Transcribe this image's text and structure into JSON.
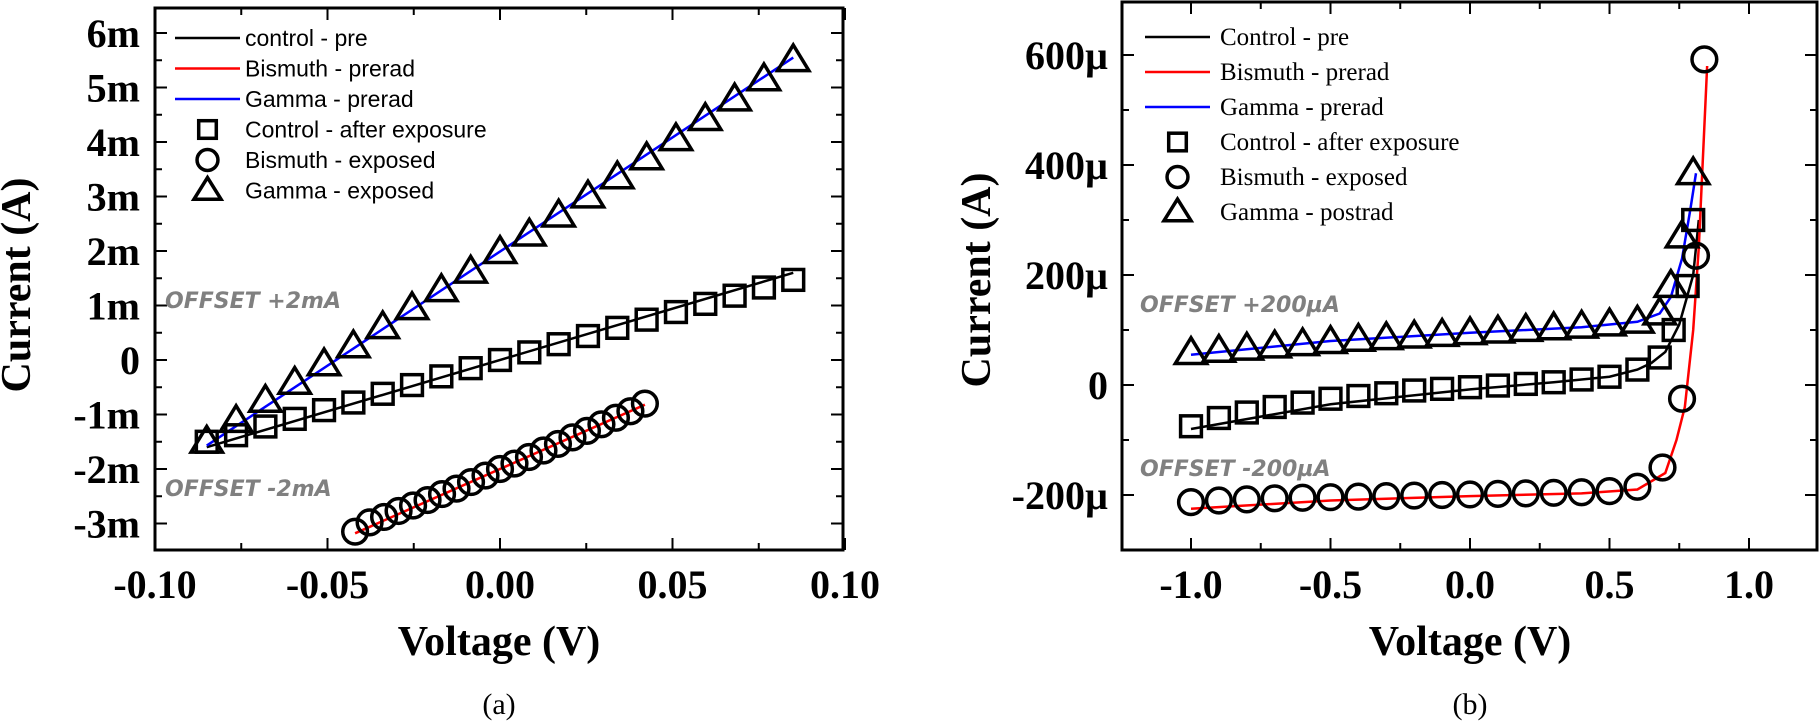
{
  "chart_data": [
    {
      "id": "a",
      "type": "scatter",
      "panel_label": "(a)",
      "title": "",
      "xlabel": "Voltage (V)",
      "ylabel": "Current (A)",
      "xlim": [
        -0.1,
        0.1
      ],
      "ylim": [
        -3.5,
        6.5
      ],
      "y_units": "mA",
      "x_ticks": [
        -0.1,
        -0.05,
        0.0,
        0.05,
        0.1
      ],
      "x_tick_labels": [
        "-0.10",
        "-0.05",
        "0.00",
        "0.05",
        "0.10"
      ],
      "y_ticks": [
        -3,
        -2,
        -1,
        0,
        1,
        2,
        3,
        4,
        5,
        6
      ],
      "y_tick_labels": [
        "-3m",
        "-2m",
        "-1m",
        "0",
        "1m",
        "2m",
        "3m",
        "4m",
        "5m",
        "6m"
      ],
      "grid": false,
      "legend_position": "top-left",
      "legend": [
        {
          "label": "control - pre",
          "kind": "line",
          "color": "#000000"
        },
        {
          "label": "Bismuth - prerad",
          "kind": "line",
          "color": "#ff0000"
        },
        {
          "label": "Gamma - prerad",
          "kind": "line",
          "color": "#0000ff"
        },
        {
          "label": "Control - after exposure",
          "kind": "square",
          "color": "#000000"
        },
        {
          "label": "Bismuth - exposed",
          "kind": "circle",
          "color": "#000000"
        },
        {
          "label": "Gamma - exposed",
          "kind": "triangle",
          "color": "#000000"
        }
      ],
      "annotations": [
        {
          "text": "OFFSET +2mA",
          "x": -0.1,
          "y": 1.0
        },
        {
          "text": "OFFSET -2mA",
          "x": -0.1,
          "y": -2.5
        }
      ],
      "series": [
        {
          "name": "control - pre",
          "kind": "line",
          "color": "#000000",
          "x": [
            -0.085,
            0.085
          ],
          "y": [
            -1.6,
            1.6
          ]
        },
        {
          "name": "Bismuth - prerad",
          "kind": "line",
          "color": "#ff0000",
          "x": [
            -0.042,
            0.042
          ],
          "y": [
            -3.18,
            -0.82
          ]
        },
        {
          "name": "Gamma - prerad",
          "kind": "line",
          "color": "#0000ff",
          "x": [
            -0.085,
            0.085
          ],
          "y": [
            -1.57,
            5.55
          ]
        },
        {
          "name": "Control - after exposure",
          "kind": "square",
          "x": [
            -0.085,
            -0.0765,
            -0.068,
            -0.0595,
            -0.051,
            -0.0425,
            -0.034,
            -0.0255,
            -0.017,
            -0.0085,
            0.0,
            0.0085,
            0.017,
            0.0255,
            0.034,
            0.0425,
            0.051,
            0.0595,
            0.068,
            0.0765,
            0.085
          ],
          "y": [
            -1.5,
            -1.38,
            -1.22,
            -1.08,
            -0.92,
            -0.78,
            -0.62,
            -0.46,
            -0.3,
            -0.15,
            0.0,
            0.14,
            0.29,
            0.44,
            0.59,
            0.74,
            0.88,
            1.03,
            1.18,
            1.33,
            1.47
          ]
        },
        {
          "name": "Bismuth - exposed",
          "kind": "circle",
          "x": [
            -0.042,
            -0.0378,
            -0.0336,
            -0.0294,
            -0.0252,
            -0.021,
            -0.0168,
            -0.0126,
            -0.0084,
            -0.0042,
            0.0,
            0.0042,
            0.0084,
            0.0126,
            0.0168,
            0.021,
            0.0252,
            0.0294,
            0.0336,
            0.0378,
            0.042
          ],
          "y": [
            -3.15,
            -2.98,
            -2.88,
            -2.77,
            -2.67,
            -2.57,
            -2.46,
            -2.36,
            -2.24,
            -2.12,
            -2.0,
            -1.9,
            -1.78,
            -1.66,
            -1.54,
            -1.42,
            -1.3,
            -1.18,
            -1.06,
            -0.94,
            -0.8
          ]
        },
        {
          "name": "Gamma - exposed",
          "kind": "triangle",
          "x": [
            -0.085,
            -0.0765,
            -0.068,
            -0.0595,
            -0.051,
            -0.0425,
            -0.034,
            -0.0255,
            -0.017,
            -0.0085,
            0.0,
            0.0085,
            0.017,
            0.0255,
            0.034,
            0.0425,
            0.051,
            0.0595,
            0.068,
            0.0765,
            0.085
          ],
          "y": [
            -1.5,
            -1.12,
            -0.75,
            -0.42,
            -0.08,
            0.25,
            0.6,
            0.95,
            1.28,
            1.62,
            1.98,
            2.3,
            2.65,
            3.0,
            3.35,
            3.7,
            4.05,
            4.42,
            4.78,
            5.15,
            5.5
          ]
        }
      ]
    },
    {
      "id": "b",
      "type": "scatter",
      "panel_label": "(b)",
      "title": "",
      "xlabel": "Voltage (V)",
      "ylabel": "Current (A)",
      "xlim": [
        -1.25,
        1.25
      ],
      "ylim": [
        -300,
        700
      ],
      "y_units": "µA",
      "x_ticks": [
        -1.0,
        -0.5,
        0.0,
        0.5,
        1.0
      ],
      "x_tick_labels": [
        "-1.0",
        "-0.5",
        "0.0",
        "0.5",
        "1.0"
      ],
      "y_ticks": [
        -200,
        0,
        200,
        400,
        600
      ],
      "y_tick_labels": [
        "-200µ",
        "0",
        "200µ",
        "400µ",
        "600µ"
      ],
      "grid": false,
      "legend_position": "top-left",
      "legend": [
        {
          "label": "Control - pre",
          "kind": "line",
          "color": "#000000"
        },
        {
          "label": "Bismuth - prerad",
          "kind": "line",
          "color": "#ff0000"
        },
        {
          "label": "Gamma - prerad",
          "kind": "line",
          "color": "#0000ff"
        },
        {
          "label": "Control - after exposure",
          "kind": "square",
          "color": "#000000"
        },
        {
          "label": "Bismuth - exposed",
          "kind": "circle",
          "color": "#000000"
        },
        {
          "label": "Gamma - postrad",
          "kind": "triangle",
          "color": "#000000"
        }
      ],
      "annotations": [
        {
          "text": "OFFSET +200µA",
          "x": -1.15,
          "y": 140
        },
        {
          "text": "OFFSET -200µA",
          "x": -1.2,
          "y": -150
        }
      ],
      "series": [
        {
          "name": "Control - pre",
          "kind": "line",
          "color": "#000000",
          "x": [
            -1.0,
            -0.5,
            0.0,
            0.3,
            0.5,
            0.6,
            0.65,
            0.7,
            0.75,
            0.8,
            0.82
          ],
          "y": [
            -80,
            -35,
            -8,
            5,
            15,
            28,
            40,
            60,
            110,
            200,
            300
          ]
        },
        {
          "name": "Bismuth - prerad",
          "kind": "line",
          "color": "#ff0000",
          "x": [
            -1.0,
            -0.5,
            0.0,
            0.4,
            0.6,
            0.65,
            0.7,
            0.74,
            0.77,
            0.8,
            0.82,
            0.85
          ],
          "y": [
            -225,
            -210,
            -202,
            -197,
            -190,
            -175,
            -160,
            -100,
            -40,
            100,
            250,
            580
          ]
        },
        {
          "name": "Gamma - prerad",
          "kind": "line",
          "color": "#0000ff",
          "x": [
            -1.0,
            -0.5,
            0.0,
            0.4,
            0.6,
            0.68,
            0.72,
            0.76,
            0.79,
            0.81
          ],
          "y": [
            55,
            80,
            95,
            105,
            115,
            130,
            160,
            230,
            320,
            385
          ]
        },
        {
          "name": "Control - after exposure",
          "kind": "square",
          "x": [
            -1.0,
            -0.9,
            -0.8,
            -0.7,
            -0.6,
            -0.5,
            -0.4,
            -0.3,
            -0.2,
            -0.1,
            0.0,
            0.1,
            0.2,
            0.3,
            0.4,
            0.5,
            0.6,
            0.68,
            0.73,
            0.78,
            0.8
          ],
          "y": [
            -75,
            -60,
            -50,
            -40,
            -32,
            -25,
            -20,
            -15,
            -10,
            -7,
            -4,
            -1,
            2,
            5,
            10,
            15,
            28,
            50,
            100,
            180,
            300
          ]
        },
        {
          "name": "Bismuth - exposed",
          "kind": "circle",
          "x": [
            -1.0,
            -0.9,
            -0.8,
            -0.7,
            -0.6,
            -0.5,
            -0.4,
            -0.3,
            -0.2,
            -0.1,
            0.0,
            0.1,
            0.2,
            0.3,
            0.4,
            0.5,
            0.6,
            0.69,
            0.76,
            0.81,
            0.84
          ],
          "y": [
            -213,
            -210,
            -208,
            -206,
            -205,
            -204,
            -203,
            -202,
            -201,
            -200,
            -199,
            -198,
            -197,
            -196,
            -195,
            -193,
            -185,
            -150,
            -25,
            235,
            592
          ]
        },
        {
          "name": "Gamma - postrad",
          "kind": "triangle",
          "x": [
            -1.0,
            -0.9,
            -0.8,
            -0.7,
            -0.6,
            -0.5,
            -0.4,
            -0.3,
            -0.2,
            -0.1,
            0.0,
            0.1,
            0.2,
            0.3,
            0.4,
            0.5,
            0.6,
            0.68,
            0.72,
            0.76,
            0.8
          ],
          "y": [
            58,
            62,
            66,
            70,
            74,
            78,
            82,
            85,
            88,
            91,
            94,
            97,
            100,
            103,
            106,
            110,
            115,
            130,
            180,
            270,
            385
          ]
        }
      ]
    }
  ]
}
